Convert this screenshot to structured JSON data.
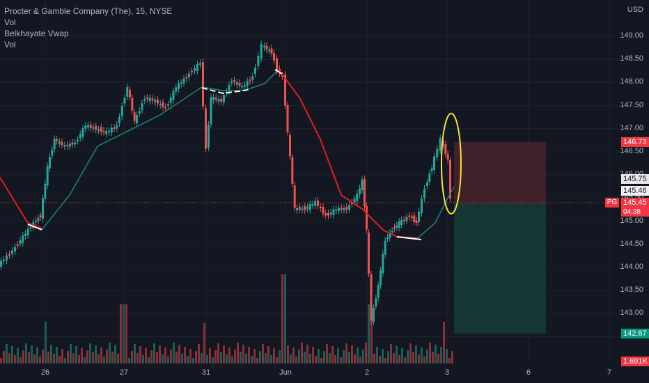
{
  "legend": {
    "title": "Procter & Gamble Company (The), 15, NYSE",
    "line2": "Vol",
    "line3": "Belkhayate Vwap",
    "line4": "Vol"
  },
  "price_axis": {
    "currency": "USD",
    "ticks": [
      "149.00",
      "148.50",
      "148.00",
      "147.50",
      "147.00",
      "146.50",
      "146.00",
      "145.50",
      "145.00",
      "144.50",
      "144.00",
      "143.50",
      "143.00",
      "142.50"
    ]
  },
  "time_axis": {
    "ticks": [
      "26",
      "27",
      "31",
      "Jun",
      "2",
      "3",
      "6",
      "7"
    ]
  },
  "price_tags": {
    "stop_price": "146.73",
    "level_a": "145.75",
    "level_b": "145.46",
    "last_price": "145.45",
    "countdown": "04:38",
    "target_price": "142.67",
    "volume": "1.691K"
  },
  "symbol": "PG",
  "colors": {
    "up": "#26a69a",
    "down": "#ef5350",
    "vwap_down": "#e51c23",
    "vwap_up": "#1e7f6a",
    "highlight": "#f5e13a"
  },
  "chart_data": {
    "type": "candlestick",
    "ylim": [
      142.4,
      149.4
    ],
    "position": {
      "entry": 145.45,
      "stop": 146.73,
      "target": 142.67
    }
  }
}
